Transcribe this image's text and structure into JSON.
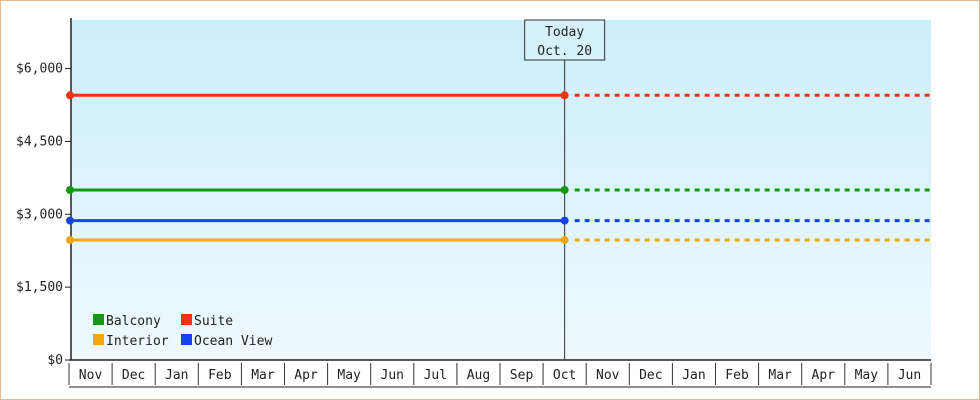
{
  "chart_data": {
    "type": "line",
    "title": "",
    "xlabel": "",
    "ylabel": "",
    "categories": [
      "Nov",
      "Dec",
      "Jan",
      "Feb",
      "Mar",
      "Apr",
      "May",
      "Jun",
      "Jul",
      "Aug",
      "Sep",
      "Oct",
      "Nov",
      "Dec",
      "Jan",
      "Feb",
      "Mar",
      "Apr",
      "May",
      "Jun"
    ],
    "ylim": [
      0,
      7000
    ],
    "yticks": [
      {
        "value": 0,
        "label": "$0"
      },
      {
        "value": 1500,
        "label": "$1,500"
      },
      {
        "value": 3000,
        "label": "$3,000"
      },
      {
        "value": 4500,
        "label": "$4,500"
      },
      {
        "value": 6000,
        "label": "$6,000"
      }
    ],
    "today": {
      "index": 11,
      "line1": "Today",
      "line2": "Oct. 20"
    },
    "series": [
      {
        "name": "Suite",
        "color": "#ee3311",
        "value": 5450
      },
      {
        "name": "Balcony",
        "color": "#119911",
        "value": 3500
      },
      {
        "name": "Ocean View",
        "color": "#1144ee",
        "value": 2870
      },
      {
        "name": "Interior",
        "color": "#f5a510",
        "value": 2470
      }
    ],
    "legend": {
      "placement": "bottom-left",
      "rows": [
        [
          "Balcony",
          "Suite"
        ],
        [
          "Interior",
          "Ocean View"
        ]
      ]
    },
    "grid": false,
    "background": {
      "top": "#cdeefb",
      "bottom": "#eef9fe"
    }
  }
}
